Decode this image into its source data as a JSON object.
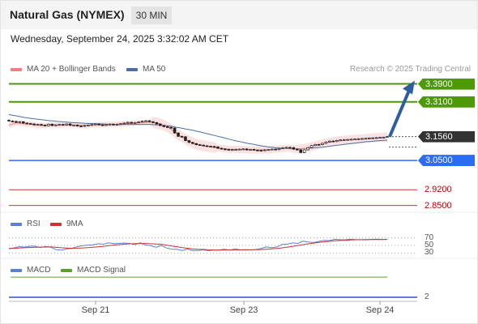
{
  "header": {
    "instrument": "Natural Gas (NYMEX)",
    "timeframe": "30 MIN"
  },
  "datetime": "Wednesday, September 24, 2025 3:32:02 AM CET",
  "copyright": "Research © 2025 Trading Central",
  "legend": {
    "ma20": "MA 20 + Bollinger Bands",
    "ma50": "MA 50",
    "rsi": "RSI",
    "rsi_ma": "9MA",
    "macd": "MACD",
    "macd_signal": "MACD Signal"
  },
  "colors": {
    "green": "#4e9a06",
    "blue": "#2a6df4",
    "dark": "#333333",
    "red": "#cc3333",
    "ma20": "#f08080",
    "ma50": "#4a6fa5",
    "bollinger": "#fadbdb",
    "rsi": "#5b7fd6",
    "arrow": "#2e5e9e",
    "macd_signal": "#5aa02c"
  },
  "chart_data": [
    {
      "type": "candlestick",
      "title": "Natural Gas (NYMEX) 30 MIN",
      "x_ticks": [
        "Sep 21",
        "Sep 23",
        "Sep 24"
      ],
      "ylim": [
        2.82,
        3.41
      ],
      "price_levels": [
        {
          "label": "3.3900",
          "value": 3.39,
          "kind": "resistance"
        },
        {
          "label": "3.3100",
          "value": 3.31,
          "kind": "resistance"
        },
        {
          "label": "3.1560",
          "value": 3.156,
          "kind": "last"
        },
        {
          "label": "3.0500",
          "value": 3.05,
          "kind": "support"
        },
        {
          "label": "2.9200",
          "value": 2.92,
          "kind": "minor"
        },
        {
          "label": "2.8500",
          "value": 2.85,
          "kind": "minor"
        }
      ],
      "target_arrow": {
        "from": 3.156,
        "to": 3.39
      },
      "close": [
        3.225,
        3.223,
        3.219,
        3.222,
        3.216,
        3.214,
        3.212,
        3.208,
        3.21,
        3.207,
        3.204,
        3.211,
        3.205,
        3.208,
        3.21,
        3.207,
        3.212,
        3.206,
        3.207,
        3.203,
        3.202,
        3.205,
        3.207,
        3.209,
        3.212,
        3.208,
        3.207,
        3.209,
        3.211,
        3.208,
        3.21,
        3.213,
        3.216,
        3.219,
        3.217,
        3.218,
        3.221,
        3.224,
        3.226,
        3.222,
        3.218,
        3.212,
        3.205,
        3.2,
        3.197,
        3.194,
        3.172,
        3.157,
        3.155,
        3.138,
        3.13,
        3.125,
        3.12,
        3.118,
        3.115,
        3.113,
        3.112,
        3.11,
        3.104,
        3.101,
        3.099,
        3.097,
        3.098,
        3.099,
        3.1,
        3.101,
        3.097,
        3.099,
        3.096,
        3.095,
        3.094,
        3.097,
        3.098,
        3.1,
        3.098,
        3.103,
        3.106,
        3.108,
        3.107,
        3.1,
        3.097,
        3.085,
        3.097,
        3.107,
        3.116,
        3.121,
        3.12,
        3.126,
        3.132,
        3.136,
        3.134,
        3.139,
        3.141,
        3.142,
        3.143,
        3.144,
        3.145,
        3.146,
        3.147,
        3.148,
        3.149,
        3.15,
        3.151,
        3.152,
        3.153,
        3.156
      ],
      "ma20": [
        3.206,
        3.211,
        3.217,
        3.215,
        3.213,
        3.211,
        3.211,
        3.209,
        3.206,
        3.205,
        3.205,
        3.207,
        3.208,
        3.207,
        3.206,
        3.208,
        3.21,
        3.209,
        3.207,
        3.207,
        3.206,
        3.206,
        3.206,
        3.207,
        3.208,
        3.208,
        3.209,
        3.21,
        3.21,
        3.21,
        3.211,
        3.212,
        3.213,
        3.214,
        3.214,
        3.216,
        3.217,
        3.218,
        3.219,
        3.22,
        3.219,
        3.216,
        3.212,
        3.206,
        3.199,
        3.189,
        3.176,
        3.164,
        3.155,
        3.145,
        3.136,
        3.128,
        3.122,
        3.118,
        3.115,
        3.112,
        3.11,
        3.107,
        3.105,
        3.103,
        3.102,
        3.1,
        3.1,
        3.099,
        3.099,
        3.098,
        3.098,
        3.097,
        3.097,
        3.097,
        3.097,
        3.097,
        3.097,
        3.099,
        3.1,
        3.101,
        3.103,
        3.104,
        3.104,
        3.102,
        3.101,
        3.101,
        3.103,
        3.107,
        3.112,
        3.116,
        3.12,
        3.124,
        3.128,
        3.131,
        3.134,
        3.136,
        3.138,
        3.14,
        3.141,
        3.143,
        3.144,
        3.145,
        3.146,
        3.147,
        3.149,
        3.15,
        3.151,
        3.152,
        3.153,
        3.154
      ],
      "ma50": [
        3.254,
        3.251,
        3.248,
        3.245,
        3.242,
        3.239,
        3.237,
        3.235,
        3.233,
        3.231,
        3.229,
        3.227,
        3.226,
        3.224,
        3.223,
        3.221,
        3.22,
        3.219,
        3.218,
        3.217,
        3.216,
        3.215,
        3.214,
        3.214,
        3.213,
        3.212,
        3.212,
        3.211,
        3.211,
        3.211,
        3.21,
        3.21,
        3.21,
        3.21,
        3.21,
        3.21,
        3.21,
        3.21,
        3.21,
        3.21,
        3.209,
        3.208,
        3.207,
        3.206,
        3.204,
        3.202,
        3.199,
        3.196,
        3.193,
        3.19,
        3.187,
        3.184,
        3.18,
        3.177,
        3.173,
        3.169,
        3.165,
        3.161,
        3.157,
        3.153,
        3.149,
        3.145,
        3.141,
        3.137,
        3.134,
        3.13,
        3.127,
        3.124,
        3.121,
        3.118,
        3.115,
        3.113,
        3.11,
        3.108,
        3.106,
        3.105,
        3.104,
        3.103,
        3.102,
        3.102,
        3.102,
        3.102,
        3.103,
        3.104,
        3.105,
        3.106,
        3.108,
        3.109,
        3.111,
        3.113,
        3.115,
        3.117,
        3.119,
        3.121,
        3.123,
        3.125,
        3.127,
        3.129,
        3.131,
        3.133,
        3.134,
        3.135,
        3.137,
        3.138,
        3.139,
        3.14
      ],
      "bollinger_half_width": [
        0.012,
        0.012,
        0.012,
        0.012,
        0.012,
        0.012,
        0.012,
        0.012,
        0.012,
        0.012,
        0.012,
        0.012,
        0.012,
        0.012,
        0.012,
        0.012,
        0.012,
        0.012,
        0.012,
        0.012,
        0.012,
        0.012,
        0.012,
        0.012,
        0.012,
        0.012,
        0.012,
        0.012,
        0.012,
        0.012,
        0.012,
        0.012,
        0.012,
        0.012,
        0.012,
        0.012,
        0.012,
        0.012,
        0.012,
        0.012,
        0.024,
        0.024,
        0.024,
        0.024,
        0.024,
        0.024,
        0.024,
        0.024,
        0.024,
        0.024,
        0.024,
        0.024,
        0.024,
        0.024,
        0.024,
        0.024,
        0.024,
        0.024,
        0.016,
        0.016,
        0.016,
        0.016,
        0.016,
        0.016,
        0.016,
        0.016,
        0.016,
        0.016,
        0.016,
        0.016,
        0.016,
        0.016,
        0.016,
        0.016,
        0.016,
        0.016,
        0.016,
        0.016,
        0.016,
        0.016,
        0.02,
        0.02,
        0.02,
        0.02,
        0.02,
        0.02,
        0.02,
        0.02,
        0.02,
        0.02,
        0.02,
        0.02,
        0.02,
        0.02,
        0.02,
        0.02,
        0.02,
        0.02,
        0.02,
        0.02,
        0.02,
        0.02,
        0.02,
        0.02,
        0.02,
        0.02
      ]
    },
    {
      "type": "line",
      "title": "RSI",
      "levels": [
        70,
        50,
        30
      ],
      "ylim": [
        20,
        80
      ],
      "series": [
        {
          "name": "RSI",
          "values": [
            40.9,
            43.6,
            46.7,
            45.6,
            47.9,
            47.9,
            44.5,
            47.2,
            45.2,
            38.6,
            37.3,
            40.5,
            42.3,
            46.6,
            49.5,
            50.8,
            51.7,
            54.6,
            53.2,
            56.9,
            54.8,
            55.4,
            56.5,
            55.2,
            52.2,
            56.9,
            51.1,
            49.4,
            44.8,
            49.8,
            43.2,
            40.2,
            39.4,
            36.7,
            40.4,
            36.3,
            36.8,
            38.3,
            36.1,
            37.8,
            37.6,
            40.2,
            37.5,
            40.9,
            38.5,
            38.9,
            38.2,
            39.2,
            41.7,
            46.1,
            43.7,
            45.9,
            52.7,
            53.4,
            56.6,
            55.3,
            61.4,
            58.8,
            57.8,
            60.7,
            63.2,
            62.6,
            66.2,
            65.0,
            65.0,
            66.3,
            65.5,
            65.1,
            64.7,
            66.0,
            66.4,
            65.8,
            66.1
          ]
        },
        {
          "name": "9MA",
          "values": [
            42.0,
            42.6,
            43.3,
            43.9,
            44.5,
            45.1,
            45.5,
            45.8,
            46.1,
            44.8,
            43.7,
            43.1,
            42.6,
            42.8,
            43.4,
            44.3,
            45.3,
            46.4,
            47.6,
            49.4,
            51.0,
            52.2,
            53.4,
            54.2,
            54.8,
            55.2,
            55.1,
            54.4,
            53.9,
            52.9,
            50.8,
            48.6,
            46.6,
            44.3,
            42.6,
            41.0,
            40.0,
            39.5,
            38.5,
            38.0,
            37.7,
            37.8,
            37.9,
            38.0,
            38.2,
            38.5,
            38.5,
            38.8,
            39.1,
            39.9,
            40.8,
            42.0,
            43.6,
            45.4,
            47.6,
            49.7,
            52.2,
            54.3,
            56.3,
            58.1,
            59.6,
            60.9,
            62.3,
            63.1,
            63.6,
            64.3,
            64.9,
            65.2,
            65.4,
            65.6,
            65.6,
            65.6,
            65.8
          ]
        }
      ]
    },
    {
      "type": "line",
      "title": "MACD",
      "ylim": [
        1.9,
        2.9
      ],
      "tick_labels": [
        "2"
      ],
      "series": [
        {
          "name": "MACD Signal",
          "values": [
            2.83,
            2.83
          ]
        },
        {
          "name": "MACD",
          "values": [
            2.0,
            2.0
          ]
        }
      ]
    }
  ]
}
